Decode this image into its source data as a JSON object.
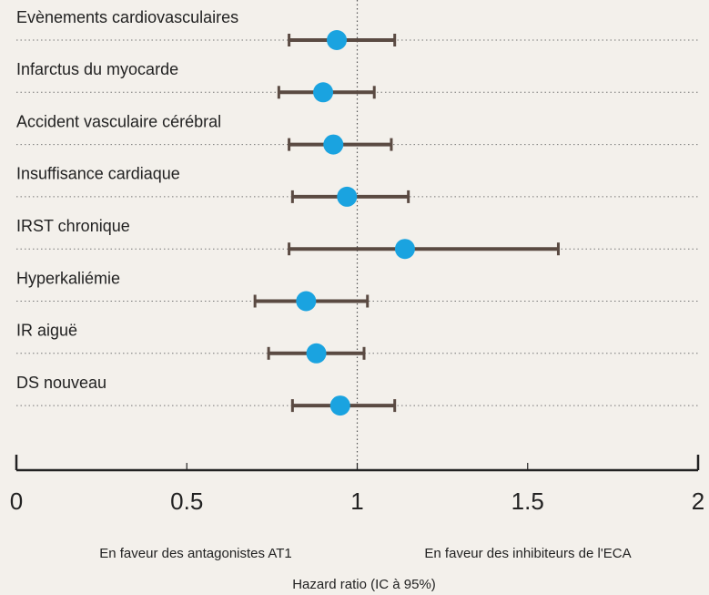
{
  "chart_data": {
    "type": "forest",
    "categories": [
      "Evènements cardiovasculaires",
      "Infarctus du myocarde",
      "Accident vasculaire cérébral",
      "Insuffisance cardiaque",
      "IRST chronique",
      "Hyperkaliémie",
      "IR aiguë",
      "DS nouveau"
    ],
    "values": [
      0.94,
      0.9,
      0.93,
      0.97,
      1.14,
      0.85,
      0.88,
      0.95
    ],
    "lower": [
      0.8,
      0.77,
      0.8,
      0.81,
      0.8,
      0.7,
      0.74,
      0.81
    ],
    "upper": [
      1.11,
      1.05,
      1.1,
      1.15,
      1.59,
      1.03,
      1.02,
      1.11
    ],
    "color": "#1aa3e0",
    "ci_color": "#5a4a42",
    "xlim": [
      0,
      2
    ],
    "xticks": [
      0,
      0.5,
      1,
      1.5,
      2
    ],
    "reference": 1,
    "annotations": [
      "En faveur des antagonistes AT1",
      "En faveur des inhibiteurs de l'ECA"
    ],
    "xlabel": "Hazard ratio (IC à 95%)"
  }
}
